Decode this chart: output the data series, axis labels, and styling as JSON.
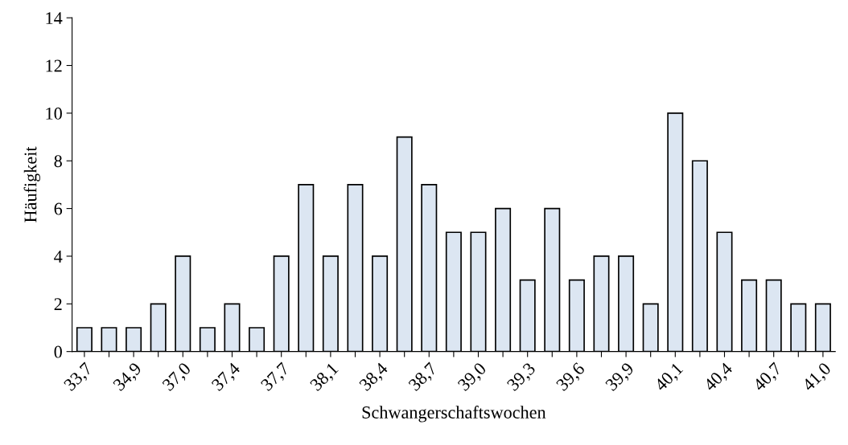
{
  "chart_data": {
    "type": "bar",
    "xlabel": "Schwangerschaftswochen",
    "ylabel": "Häufigkeit",
    "categories": [
      "33,7",
      null,
      "34,9",
      null,
      "37,0",
      null,
      "37,4",
      null,
      "37,7",
      null,
      "38,1",
      null,
      "38,4",
      null,
      "38,7",
      null,
      "39,0",
      null,
      "39,3",
      null,
      "39,6",
      null,
      "39,9",
      null,
      "40,1",
      null,
      "40,4",
      null,
      "40,7",
      null,
      "41,0"
    ],
    "values": [
      1,
      1,
      1,
      2,
      4,
      1,
      2,
      1,
      4,
      7,
      4,
      7,
      4,
      9,
      7,
      5,
      5,
      6,
      3,
      6,
      3,
      4,
      4,
      2,
      10,
      8,
      5,
      3,
      3,
      2,
      2
    ],
    "color": "#dce6f2",
    "ylim": [
      0,
      14
    ],
    "yticks": [
      0,
      2,
      4,
      6,
      8,
      10,
      12,
      14
    ],
    "grid": false,
    "legend": false
  }
}
